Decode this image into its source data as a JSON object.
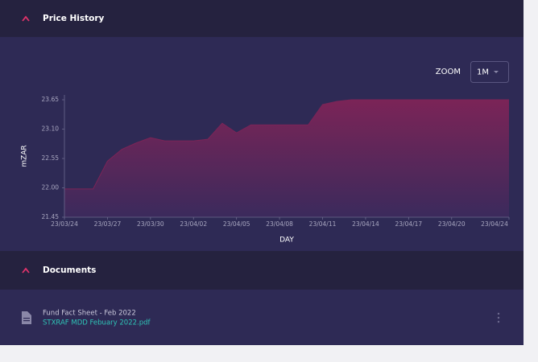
{
  "sections": [
    {
      "title": "Price History"
    },
    {
      "title": "Documents"
    }
  ],
  "zoom": {
    "label": "ZOOM",
    "value": "1M"
  },
  "chart_data": {
    "type": "area",
    "y_label": "mZAR",
    "x_label": "DAY",
    "color": "#7b2457",
    "categories": [
      "23/03/24",
      null,
      null,
      "23/03/27",
      null,
      null,
      "23/03/30",
      null,
      null,
      "23/04/02",
      null,
      null,
      "23/04/05",
      null,
      null,
      "23/04/08",
      null,
      null,
      "23/04/11",
      null,
      null,
      "23/04/14",
      null,
      null,
      "23/04/17",
      null,
      null,
      "23/04/20",
      null,
      null,
      null,
      "23/04/24"
    ],
    "values": [
      21.98,
      21.98,
      21.98,
      22.5,
      22.72,
      22.84,
      22.94,
      22.88,
      22.88,
      22.88,
      22.91,
      23.21,
      23.03,
      23.18,
      23.18,
      23.18,
      23.18,
      23.18,
      23.56,
      23.62,
      23.65,
      23.65,
      23.65,
      23.65,
      23.65,
      23.65,
      23.65,
      23.65,
      23.65,
      23.65,
      23.65,
      23.65
    ],
    "ylim": [
      21.45,
      23.65
    ],
    "yticks": [
      21.45,
      {
        "value": 22,
        "label": "22.00"
      },
      22.55,
      {
        "value": 23.1,
        "label": "23.10"
      },
      23.65
    ]
  },
  "documents": [
    {
      "title": "Fund Fact Sheet - Feb 2022",
      "file": "STXRAF MDD Febuary 2022.pdf"
    }
  ]
}
